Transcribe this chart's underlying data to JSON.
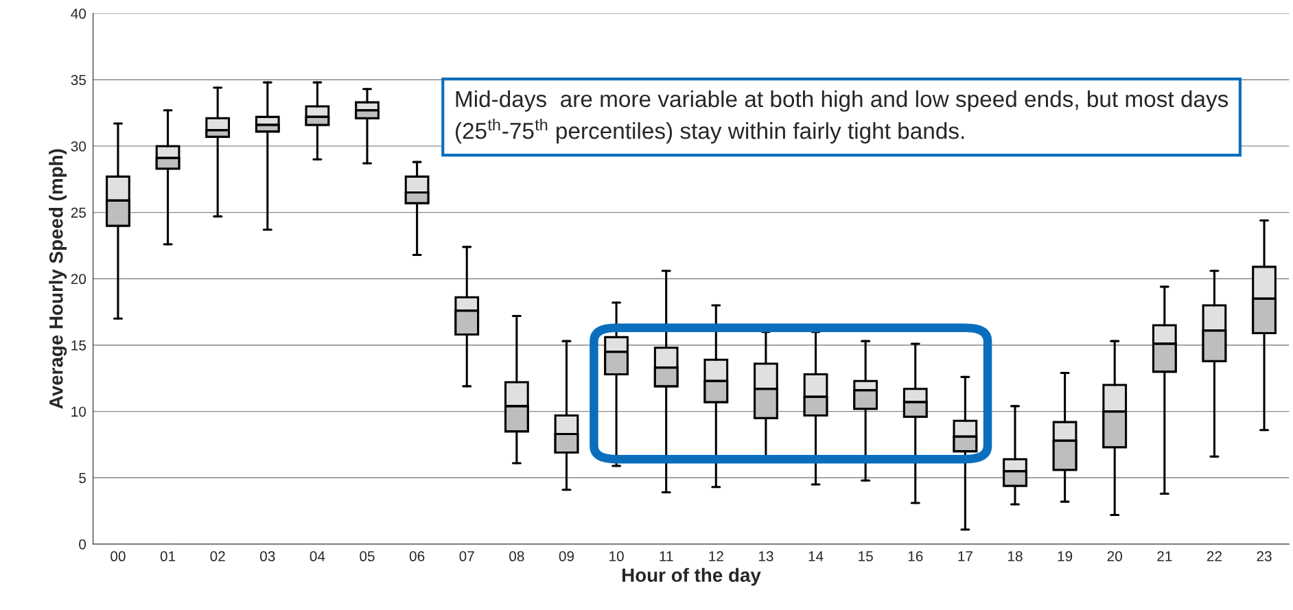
{
  "chart_data": {
    "type": "box",
    "xlabel": "Hour of the day",
    "ylabel": "Average Hourly Speed (mph)",
    "categories": [
      "00",
      "01",
      "02",
      "03",
      "04",
      "05",
      "06",
      "07",
      "08",
      "09",
      "10",
      "11",
      "12",
      "13",
      "14",
      "15",
      "16",
      "17",
      "18",
      "19",
      "20",
      "21",
      "22",
      "23"
    ],
    "boxes": [
      {
        "low": 17.0,
        "q1": 24.0,
        "median": 25.9,
        "q3": 27.7,
        "high": 31.7
      },
      {
        "low": 22.6,
        "q1": 28.3,
        "median": 29.1,
        "q3": 30.0,
        "high": 32.7
      },
      {
        "low": 24.7,
        "q1": 30.7,
        "median": 31.2,
        "q3": 32.1,
        "high": 34.4
      },
      {
        "low": 23.7,
        "q1": 31.1,
        "median": 31.6,
        "q3": 32.2,
        "high": 34.8
      },
      {
        "low": 29.0,
        "q1": 31.6,
        "median": 32.2,
        "q3": 33.0,
        "high": 34.8
      },
      {
        "low": 28.7,
        "q1": 32.1,
        "median": 32.7,
        "q3": 33.3,
        "high": 34.3
      },
      {
        "low": 21.8,
        "q1": 25.7,
        "median": 26.5,
        "q3": 27.7,
        "high": 28.8
      },
      {
        "low": 11.9,
        "q1": 15.8,
        "median": 17.6,
        "q3": 18.6,
        "high": 22.4
      },
      {
        "low": 6.1,
        "q1": 8.5,
        "median": 10.4,
        "q3": 12.2,
        "high": 17.2
      },
      {
        "low": 4.1,
        "q1": 6.9,
        "median": 8.3,
        "q3": 9.7,
        "high": 15.3
      },
      {
        "low": 5.9,
        "q1": 12.8,
        "median": 14.5,
        "q3": 15.6,
        "high": 18.2
      },
      {
        "low": 3.9,
        "q1": 11.9,
        "median": 13.3,
        "q3": 14.8,
        "high": 20.6
      },
      {
        "low": 4.3,
        "q1": 10.7,
        "median": 12.3,
        "q3": 13.9,
        "high": 18.0
      },
      {
        "low": 6.6,
        "q1": 9.5,
        "median": 11.7,
        "q3": 13.6,
        "high": 16.0
      },
      {
        "low": 4.5,
        "q1": 9.7,
        "median": 11.1,
        "q3": 12.8,
        "high": 16.0
      },
      {
        "low": 4.8,
        "q1": 10.2,
        "median": 11.6,
        "q3": 12.3,
        "high": 15.3
      },
      {
        "low": 3.1,
        "q1": 9.6,
        "median": 10.7,
        "q3": 11.7,
        "high": 15.1
      },
      {
        "low": 1.1,
        "q1": 7.0,
        "median": 8.1,
        "q3": 9.3,
        "high": 12.6
      },
      {
        "low": 3.0,
        "q1": 4.4,
        "median": 5.5,
        "q3": 6.4,
        "high": 10.4
      },
      {
        "low": 3.2,
        "q1": 5.6,
        "median": 7.8,
        "q3": 9.2,
        "high": 12.9
      },
      {
        "low": 2.2,
        "q1": 7.3,
        "median": 10.0,
        "q3": 12.0,
        "high": 15.3
      },
      {
        "low": 3.8,
        "q1": 13.0,
        "median": 15.1,
        "q3": 16.5,
        "high": 19.4
      },
      {
        "low": 6.6,
        "q1": 13.8,
        "median": 16.1,
        "q3": 18.0,
        "high": 20.6
      },
      {
        "low": 8.6,
        "q1": 15.9,
        "median": 18.5,
        "q3": 20.9,
        "high": 24.4
      }
    ],
    "color": "#e0e0e0",
    "ylim": [
      0,
      40
    ],
    "yticks": [
      0,
      5,
      10,
      15,
      20,
      25,
      30,
      35,
      40
    ],
    "grid": "y",
    "annotations": [
      "Mid-days  are more variable at both high and low speed ends, but most days (25$^{th}$-75$^{th}$ percentiles) stay within fairly tight bands."
    ]
  }
}
